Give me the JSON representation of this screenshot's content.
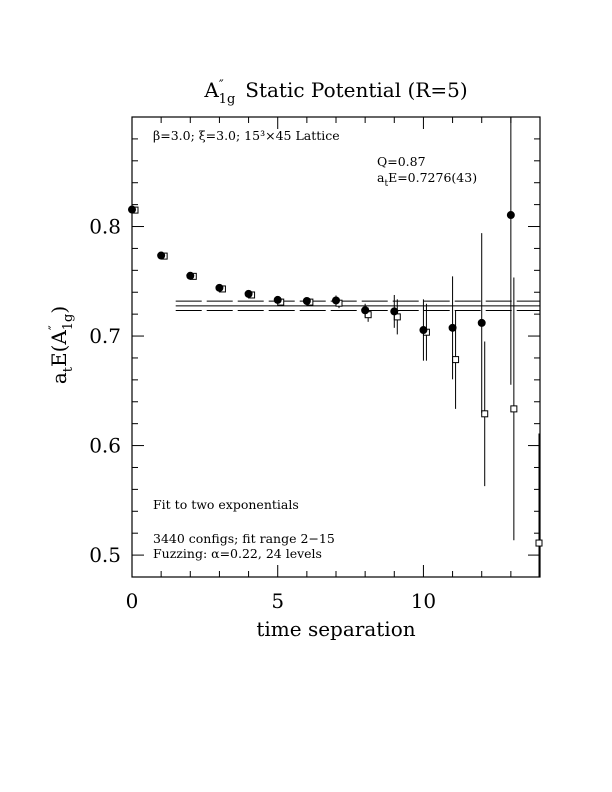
{
  "chart_data": {
    "type": "scatter",
    "title": "A″₁g Static Potential (R=5)",
    "title_parts": {
      "main": "A",
      "sup": "″",
      "sub": "1g",
      "rest": "Static Potential (R=5)"
    },
    "xlabel": "time separation",
    "ylabel": "aₜE(A″₁g)",
    "ylabel_parts": {
      "a": "a",
      "t": "t",
      "E": "E(A",
      "sup": "″",
      "sub": "1g",
      "close": ")"
    },
    "xlim": [
      0,
      14
    ],
    "ylim": [
      0.48,
      0.9
    ],
    "xticks": [
      0,
      5,
      10
    ],
    "xtick_labels": [
      "0",
      "5",
      "10"
    ],
    "yticks": [
      0.5,
      0.6,
      0.7,
      0.8
    ],
    "ytick_labels": [
      "0.5",
      "0.6",
      "0.7",
      "0.8"
    ],
    "grid": false,
    "series": [
      {
        "marker": "filled-circle",
        "points": [
          {
            "x": 0,
            "y": 0.8155,
            "err": 0.003
          },
          {
            "x": 1,
            "y": 0.7735,
            "err": 0.002
          },
          {
            "x": 2,
            "y": 0.755,
            "err": 0.002
          },
          {
            "x": 3,
            "y": 0.744,
            "err": 0.0025
          },
          {
            "x": 4,
            "y": 0.7385,
            "err": 0.0025
          },
          {
            "x": 5,
            "y": 0.733,
            "err": 0.003
          },
          {
            "x": 6,
            "y": 0.732,
            "err": 0.003
          },
          {
            "x": 7,
            "y": 0.7325,
            "err": 0.0045
          },
          {
            "x": 8,
            "y": 0.7235,
            "err": 0.006
          },
          {
            "x": 9,
            "y": 0.7225,
            "err": 0.015
          },
          {
            "x": 10,
            "y": 0.7055,
            "err": 0.028
          },
          {
            "x": 11,
            "y": 0.7075,
            "err": 0.047
          },
          {
            "x": 12,
            "y": 0.712,
            "err": 0.082
          },
          {
            "x": 13,
            "y": 0.8105,
            "err": 0.155
          }
        ]
      },
      {
        "marker": "open-square",
        "points": [
          {
            "x": 0,
            "y": 0.815,
            "err": 0.003
          },
          {
            "x": 1,
            "y": 0.773,
            "err": 0.002
          },
          {
            "x": 2,
            "y": 0.7545,
            "err": 0.002
          },
          {
            "x": 3,
            "y": 0.743,
            "err": 0.0025
          },
          {
            "x": 4,
            "y": 0.7375,
            "err": 0.0025
          },
          {
            "x": 5,
            "y": 0.731,
            "err": 0.003
          },
          {
            "x": 6,
            "y": 0.731,
            "err": 0.003
          },
          {
            "x": 7,
            "y": 0.73,
            "err": 0.0045
          },
          {
            "x": 8,
            "y": 0.7195,
            "err": 0.0065
          },
          {
            "x": 9,
            "y": 0.7175,
            "err": 0.016
          },
          {
            "x": 10,
            "y": 0.7035,
            "err": 0.026
          },
          {
            "x": 11,
            "y": 0.6785,
            "err": 0.045
          },
          {
            "x": 12,
            "y": 0.629,
            "err": 0.066
          },
          {
            "x": 13,
            "y": 0.6335,
            "err": 0.12
          },
          {
            "x": 14,
            "y": 0.511,
            "err": 0.1
          }
        ]
      }
    ],
    "fit": {
      "x_range": [
        1.5,
        14
      ],
      "central": 0.7276,
      "error": 0.0043
    },
    "annotations": {
      "lattice": "β=3.0; ξ=3.0; 15³×45 Lattice",
      "q_value": "Q=0.87",
      "energy": "aₜE=0.7276(43)",
      "energy_parts": {
        "a": "a",
        "t": "t",
        "rest": "E=0.7276(43)"
      },
      "fit_desc": "Fit to two exponentials",
      "configs": "3440 configs; fit range 2−15",
      "fuzzing": "Fuzzing: α=0.22, 24 levels"
    }
  }
}
